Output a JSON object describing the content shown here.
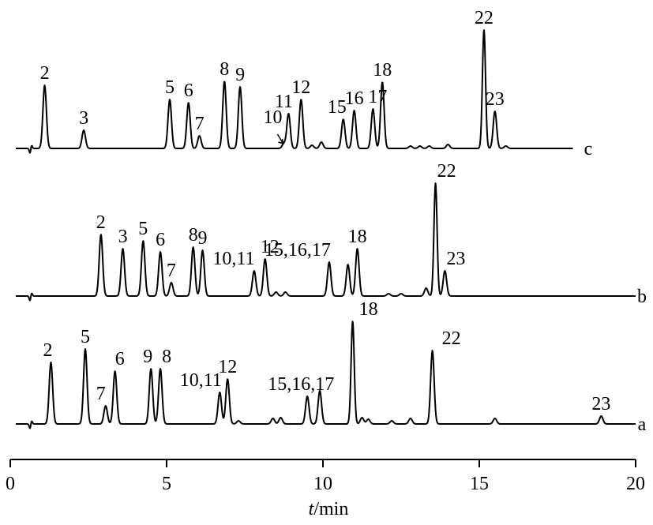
{
  "chart_data": {
    "type": "line",
    "xlabel_italic": "t",
    "xlabel_unit": "/min",
    "xlim": [
      0,
      20
    ],
    "xticks": [
      0,
      5,
      10,
      15,
      20
    ],
    "series": [
      {
        "name": "c",
        "end_time": 18,
        "peaks": [
          {
            "t": 1.1,
            "h": 80,
            "label": "2"
          },
          {
            "t": 2.35,
            "h": 23,
            "label": "3"
          },
          {
            "t": 5.1,
            "h": 62,
            "label": "5"
          },
          {
            "t": 5.7,
            "h": 58,
            "label": "6"
          },
          {
            "t": 6.05,
            "h": 16,
            "label": "7"
          },
          {
            "t": 6.85,
            "h": 85,
            "label": "8"
          },
          {
            "t": 7.35,
            "h": 78,
            "label": "9"
          },
          {
            "t": 8.75,
            "h": 6,
            "label": "10"
          },
          {
            "t": 8.9,
            "h": 44,
            "label": "11"
          },
          {
            "t": 9.3,
            "h": 62,
            "label": "12"
          },
          {
            "t": 9.65,
            "h": 4,
            "label": ""
          },
          {
            "t": 9.95,
            "h": 8,
            "label": ""
          },
          {
            "t": 10.65,
            "h": 37,
            "label": "15"
          },
          {
            "t": 11.0,
            "h": 48,
            "label": "16"
          },
          {
            "t": 11.6,
            "h": 50,
            "label": "17"
          },
          {
            "t": 11.9,
            "h": 84,
            "label": "18"
          },
          {
            "t": 12.8,
            "h": 3,
            "label": ""
          },
          {
            "t": 13.1,
            "h": 3,
            "label": ""
          },
          {
            "t": 13.4,
            "h": 3,
            "label": ""
          },
          {
            "t": 14.0,
            "h": 5,
            "label": ""
          },
          {
            "t": 15.15,
            "h": 150,
            "label": "22"
          },
          {
            "t": 15.5,
            "h": 47,
            "label": "23"
          },
          {
            "t": 15.85,
            "h": 3,
            "label": ""
          }
        ]
      },
      {
        "name": "b",
        "end_time": 20,
        "peaks": [
          {
            "t": 2.9,
            "h": 78,
            "label": "2"
          },
          {
            "t": 3.6,
            "h": 60,
            "label": "3"
          },
          {
            "t": 4.25,
            "h": 70,
            "label": "5"
          },
          {
            "t": 4.8,
            "h": 56,
            "label": "6"
          },
          {
            "t": 5.15,
            "h": 17,
            "label": "7"
          },
          {
            "t": 5.85,
            "h": 62,
            "label": "8"
          },
          {
            "t": 6.15,
            "h": 58,
            "label": "9"
          },
          {
            "t": 7.8,
            "h": 32,
            "label": "10,11"
          },
          {
            "t": 8.15,
            "h": 47,
            "label": "12"
          },
          {
            "t": 8.5,
            "h": 5,
            "label": ""
          },
          {
            "t": 8.8,
            "h": 5,
            "label": ""
          },
          {
            "t": 10.2,
            "h": 43,
            "label": "15,16,17"
          },
          {
            "t": 10.8,
            "h": 40,
            "label": ""
          },
          {
            "t": 11.1,
            "h": 60,
            "label": "18"
          },
          {
            "t": 12.1,
            "h": 3,
            "label": ""
          },
          {
            "t": 12.5,
            "h": 3,
            "label": ""
          },
          {
            "t": 13.3,
            "h": 10,
            "label": ""
          },
          {
            "t": 13.6,
            "h": 143,
            "label": "22"
          },
          {
            "t": 13.9,
            "h": 32,
            "label": "23"
          }
        ]
      },
      {
        "name": "a",
        "end_time": 20,
        "peaks": [
          {
            "t": 1.3,
            "h": 78,
            "label": "2"
          },
          {
            "t": 2.4,
            "h": 95,
            "label": "5"
          },
          {
            "t": 3.05,
            "h": 23,
            "label": "7"
          },
          {
            "t": 3.35,
            "h": 67,
            "label": "6"
          },
          {
            "t": 4.5,
            "h": 70,
            "label": "9"
          },
          {
            "t": 4.8,
            "h": 70,
            "label": "8"
          },
          {
            "t": 6.7,
            "h": 40,
            "label": "10,11"
          },
          {
            "t": 6.95,
            "h": 57,
            "label": "12"
          },
          {
            "t": 7.3,
            "h": 4,
            "label": ""
          },
          {
            "t": 8.4,
            "h": 7,
            "label": ""
          },
          {
            "t": 8.65,
            "h": 8,
            "label": ""
          },
          {
            "t": 9.5,
            "h": 35,
            "label": "15,16,17"
          },
          {
            "t": 9.9,
            "h": 42,
            "label": ""
          },
          {
            "t": 10.95,
            "h": 130,
            "label": "18"
          },
          {
            "t": 11.25,
            "h": 8,
            "label": ""
          },
          {
            "t": 11.45,
            "h": 6,
            "label": ""
          },
          {
            "t": 12.2,
            "h": 4,
            "label": ""
          },
          {
            "t": 12.8,
            "h": 7,
            "label": ""
          },
          {
            "t": 13.5,
            "h": 93,
            "label": "22"
          },
          {
            "t": 15.5,
            "h": 7,
            "label": ""
          },
          {
            "t": 18.9,
            "h": 10,
            "label": "23"
          }
        ]
      }
    ]
  }
}
